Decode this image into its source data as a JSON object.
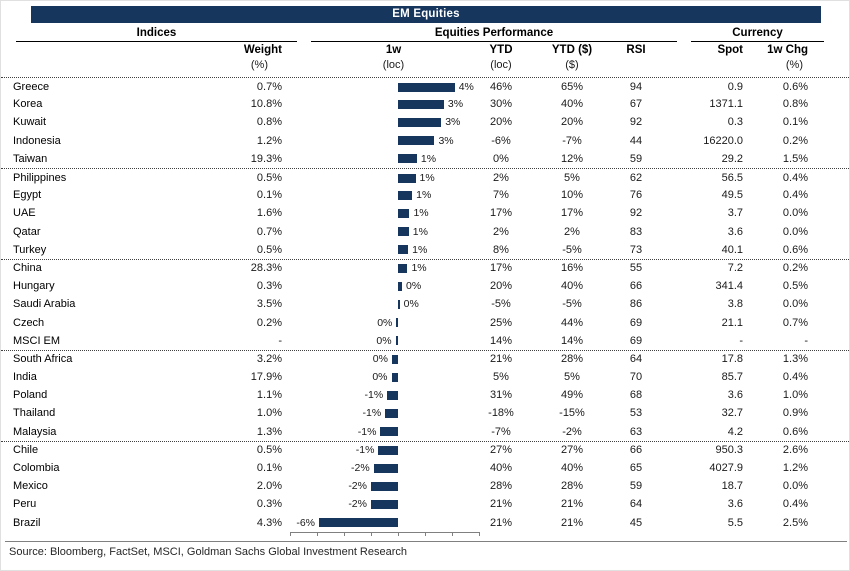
{
  "title": "EM Equities",
  "source": "Source: Bloomberg, FactSet, MSCI, Goldman Sachs Global Investment Research",
  "colors": {
    "navy": "#17365D",
    "text": "#1a1a1a",
    "separator": "#404040",
    "axis": "#808080"
  },
  "chart_data": {
    "type": "table",
    "title": "EM Equities",
    "column_groups": [
      {
        "label": "Indices"
      },
      {
        "label": "Equities Performance"
      },
      {
        "label": "Currency"
      }
    ],
    "columns": [
      {
        "key": "index",
        "label": "",
        "sub": ""
      },
      {
        "key": "weight",
        "label": "Weight",
        "sub": "(%)"
      },
      {
        "key": "one_w",
        "label": "1w",
        "sub": "(loc)"
      },
      {
        "key": "ytd",
        "label": "YTD",
        "sub": "(loc)"
      },
      {
        "key": "ytd_usd",
        "label": "YTD ($)",
        "sub": "($)"
      },
      {
        "key": "rsi",
        "label": "RSI",
        "sub": ""
      },
      {
        "key": "spot",
        "label": "Spot",
        "sub": ""
      },
      {
        "key": "chg",
        "label": "1w Chg",
        "sub": "(%)"
      }
    ],
    "embedded_bar_chart": {
      "type": "bar",
      "orientation": "horizontal",
      "column": "1w (loc)",
      "xlim": [
        -8,
        6
      ],
      "tick_step": 2,
      "bar_color": "#17365D",
      "grid": false,
      "legend": false
    },
    "rows": [
      {
        "index": "Greece",
        "weight": "0.7%",
        "one_w_value": 4.2,
        "one_w_label": "4%",
        "ytd": "46%",
        "ytd_usd": "65%",
        "rsi": "94",
        "spot": "0.9",
        "chg": "0.6%"
      },
      {
        "index": "Korea",
        "weight": "10.8%",
        "one_w_value": 3.4,
        "one_w_label": "3%",
        "ytd": "30%",
        "ytd_usd": "40%",
        "rsi": "67",
        "spot": "1371.1",
        "chg": "0.8%"
      },
      {
        "index": "Kuwait",
        "weight": "0.8%",
        "one_w_value": 3.2,
        "one_w_label": "3%",
        "ytd": "20%",
        "ytd_usd": "20%",
        "rsi": "92",
        "spot": "0.3",
        "chg": "0.1%"
      },
      {
        "index": "Indonesia",
        "weight": "1.2%",
        "one_w_value": 2.7,
        "one_w_label": "3%",
        "ytd": "-6%",
        "ytd_usd": "-7%",
        "rsi": "44",
        "spot": "16220.0",
        "chg": "0.2%"
      },
      {
        "index": "Taiwan",
        "weight": "19.3%",
        "one_w_value": 1.4,
        "one_w_label": "1%",
        "ytd": "0%",
        "ytd_usd": "12%",
        "rsi": "59",
        "spot": "29.2",
        "chg": "1.5%"
      },
      {
        "index": "Philippines",
        "weight": "0.5%",
        "one_w_value": 1.3,
        "one_w_label": "1%",
        "ytd": "2%",
        "ytd_usd": "5%",
        "rsi": "62",
        "spot": "56.5",
        "chg": "0.4%"
      },
      {
        "index": "Egypt",
        "weight": "0.1%",
        "one_w_value": 1.05,
        "one_w_label": "1%",
        "ytd": "7%",
        "ytd_usd": "10%",
        "rsi": "76",
        "spot": "49.5",
        "chg": "0.4%"
      },
      {
        "index": "UAE",
        "weight": "1.6%",
        "one_w_value": 0.85,
        "one_w_label": "1%",
        "ytd": "17%",
        "ytd_usd": "17%",
        "rsi": "92",
        "spot": "3.7",
        "chg": "0.0%"
      },
      {
        "index": "Qatar",
        "weight": "0.7%",
        "one_w_value": 0.8,
        "one_w_label": "1%",
        "ytd": "2%",
        "ytd_usd": "2%",
        "rsi": "83",
        "spot": "3.6",
        "chg": "0.0%"
      },
      {
        "index": "Turkey",
        "weight": "0.5%",
        "one_w_value": 0.75,
        "one_w_label": "1%",
        "ytd": "8%",
        "ytd_usd": "-5%",
        "rsi": "73",
        "spot": "40.1",
        "chg": "0.6%"
      },
      {
        "index": "China",
        "weight": "28.3%",
        "one_w_value": 0.7,
        "one_w_label": "1%",
        "ytd": "17%",
        "ytd_usd": "16%",
        "rsi": "55",
        "spot": "7.2",
        "chg": "0.2%"
      },
      {
        "index": "Hungary",
        "weight": "0.3%",
        "one_w_value": 0.3,
        "one_w_label": "0%",
        "ytd": "20%",
        "ytd_usd": "40%",
        "rsi": "66",
        "spot": "341.4",
        "chg": "0.5%"
      },
      {
        "index": "Saudi Arabia",
        "weight": "3.5%",
        "one_w_value": 0.12,
        "one_w_label": "0%",
        "ytd": "-5%",
        "ytd_usd": "-5%",
        "rsi": "86",
        "spot": "3.8",
        "chg": "0.0%"
      },
      {
        "index": "Czech",
        "weight": "0.2%",
        "one_w_value": -0.12,
        "one_w_label": "0%",
        "ytd": "25%",
        "ytd_usd": "44%",
        "rsi": "69",
        "spot": "21.1",
        "chg": "0.7%"
      },
      {
        "index": "MSCI EM",
        "weight": "-",
        "one_w_value": -0.18,
        "one_w_label": "0%",
        "ytd": "14%",
        "ytd_usd": "14%",
        "rsi": "69",
        "spot": "-",
        "chg": "-"
      },
      {
        "index": "South Africa",
        "weight": "3.2%",
        "one_w_value": -0.45,
        "one_w_label": "0%",
        "ytd": "21%",
        "ytd_usd": "28%",
        "rsi": "64",
        "spot": "17.8",
        "chg": "1.3%"
      },
      {
        "index": "India",
        "weight": "17.9%",
        "one_w_value": -0.48,
        "one_w_label": "0%",
        "ytd": "5%",
        "ytd_usd": "5%",
        "rsi": "70",
        "spot": "85.7",
        "chg": "0.4%"
      },
      {
        "index": "Poland",
        "weight": "1.1%",
        "one_w_value": -0.8,
        "one_w_label": "-1%",
        "ytd": "31%",
        "ytd_usd": "49%",
        "rsi": "68",
        "spot": "3.6",
        "chg": "1.0%"
      },
      {
        "index": "Thailand",
        "weight": "1.0%",
        "one_w_value": -0.95,
        "one_w_label": "-1%",
        "ytd": "-18%",
        "ytd_usd": "-15%",
        "rsi": "53",
        "spot": "32.7",
        "chg": "0.9%"
      },
      {
        "index": "Malaysia",
        "weight": "1.3%",
        "one_w_value": -1.3,
        "one_w_label": "-1%",
        "ytd": "-7%",
        "ytd_usd": "-2%",
        "rsi": "63",
        "spot": "4.2",
        "chg": "0.6%"
      },
      {
        "index": "Chile",
        "weight": "0.5%",
        "one_w_value": -1.45,
        "one_w_label": "-1%",
        "ytd": "27%",
        "ytd_usd": "27%",
        "rsi": "66",
        "spot": "950.3",
        "chg": "2.6%"
      },
      {
        "index": "Colombia",
        "weight": "0.1%",
        "one_w_value": -1.8,
        "one_w_label": "-2%",
        "ytd": "40%",
        "ytd_usd": "40%",
        "rsi": "65",
        "spot": "4027.9",
        "chg": "1.2%"
      },
      {
        "index": "Mexico",
        "weight": "2.0%",
        "one_w_value": -2.0,
        "one_w_label": "-2%",
        "ytd": "28%",
        "ytd_usd": "28%",
        "rsi": "59",
        "spot": "18.7",
        "chg": "0.0%"
      },
      {
        "index": "Peru",
        "weight": "0.3%",
        "one_w_value": -2.0,
        "one_w_label": "-2%",
        "ytd": "21%",
        "ytd_usd": "21%",
        "rsi": "64",
        "spot": "3.6",
        "chg": "0.4%"
      },
      {
        "index": "Brazil",
        "weight": "4.3%",
        "one_w_value": -5.85,
        "one_w_label": "-6%",
        "ytd": "21%",
        "ytd_usd": "21%",
        "rsi": "45",
        "spot": "5.5",
        "chg": "2.5%"
      }
    ]
  }
}
